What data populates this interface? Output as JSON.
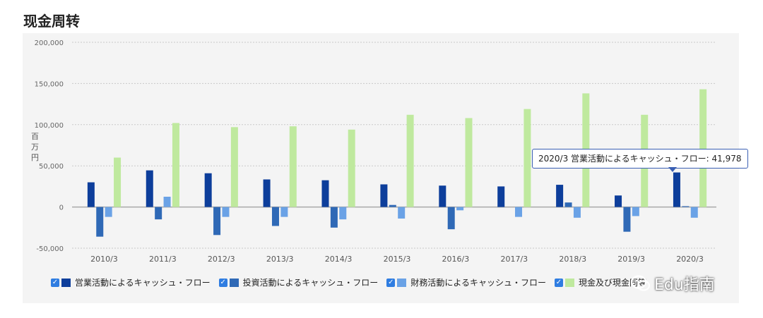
{
  "page": {
    "title": "现金周转"
  },
  "colors": {
    "operating": "#0d3e9b",
    "investing": "#2f69b6",
    "financing": "#6aa2e6",
    "cash": "#bfe99e",
    "gridline": "#c9c9c9",
    "zeroline": "#a8a8a8",
    "checkbox": "#2f7de1",
    "tooltip_border": "#3a5fb3"
  },
  "chart_data": {
    "type": "bar",
    "title": "",
    "ylabel": "百万円",
    "xlabel": "",
    "ylim": [
      -50000,
      200000
    ],
    "yticks": [
      200000,
      150000,
      100000,
      50000,
      0,
      -50000
    ],
    "ytick_labels": [
      "200,000",
      "150,000",
      "100,000",
      "50,000",
      "0",
      "-50,000"
    ],
    "categories": [
      "2010/3",
      "2011/3",
      "2012/3",
      "2013/3",
      "2014/3",
      "2015/3",
      "2016/3",
      "2017/3",
      "2018/3",
      "2019/3",
      "2020/3"
    ],
    "series": [
      {
        "name": "営業活動によるキャッシュ・フロー",
        "color_key": "operating",
        "values": [
          30000,
          44500,
          41000,
          33500,
          32500,
          27500,
          26000,
          25000,
          27000,
          14000,
          41978
        ]
      },
      {
        "name": "投資活動によるキャッシュ・フロー",
        "color_key": "investing",
        "values": [
          -36000,
          -15000,
          -34000,
          -23000,
          -25000,
          2500,
          -27000,
          0,
          5500,
          -30000,
          1000
        ]
      },
      {
        "name": "財務活動によるキャッシュ・フロー",
        "color_key": "financing",
        "values": [
          -12000,
          12500,
          -12000,
          -12000,
          -15000,
          -14000,
          -4000,
          -12000,
          -13000,
          -11000,
          -13000
        ]
      },
      {
        "name": "現金及び現金同等物の期末残高",
        "color_key": "cash",
        "values": [
          60000,
          102000,
          97000,
          98000,
          94000,
          112000,
          108000,
          119000,
          138000,
          112000,
          143000
        ]
      }
    ],
    "legend_position": "bottom-left",
    "grid": true
  },
  "legend": {
    "items": [
      {
        "label": "営業活動によるキャッシュ・フロー"
      },
      {
        "label": "投資活動によるキャッシュ・フロー"
      },
      {
        "label": "財務活動によるキャッシュ・フロー"
      },
      {
        "label": "現金及び現金同等"
      }
    ],
    "checkmark": "✓"
  },
  "tooltip": {
    "text": "2020/3 営業活動によるキャッシュ・フロー: 41,978"
  },
  "watermark": {
    "text": "Edu指南",
    "icon": "wechat-icon"
  }
}
